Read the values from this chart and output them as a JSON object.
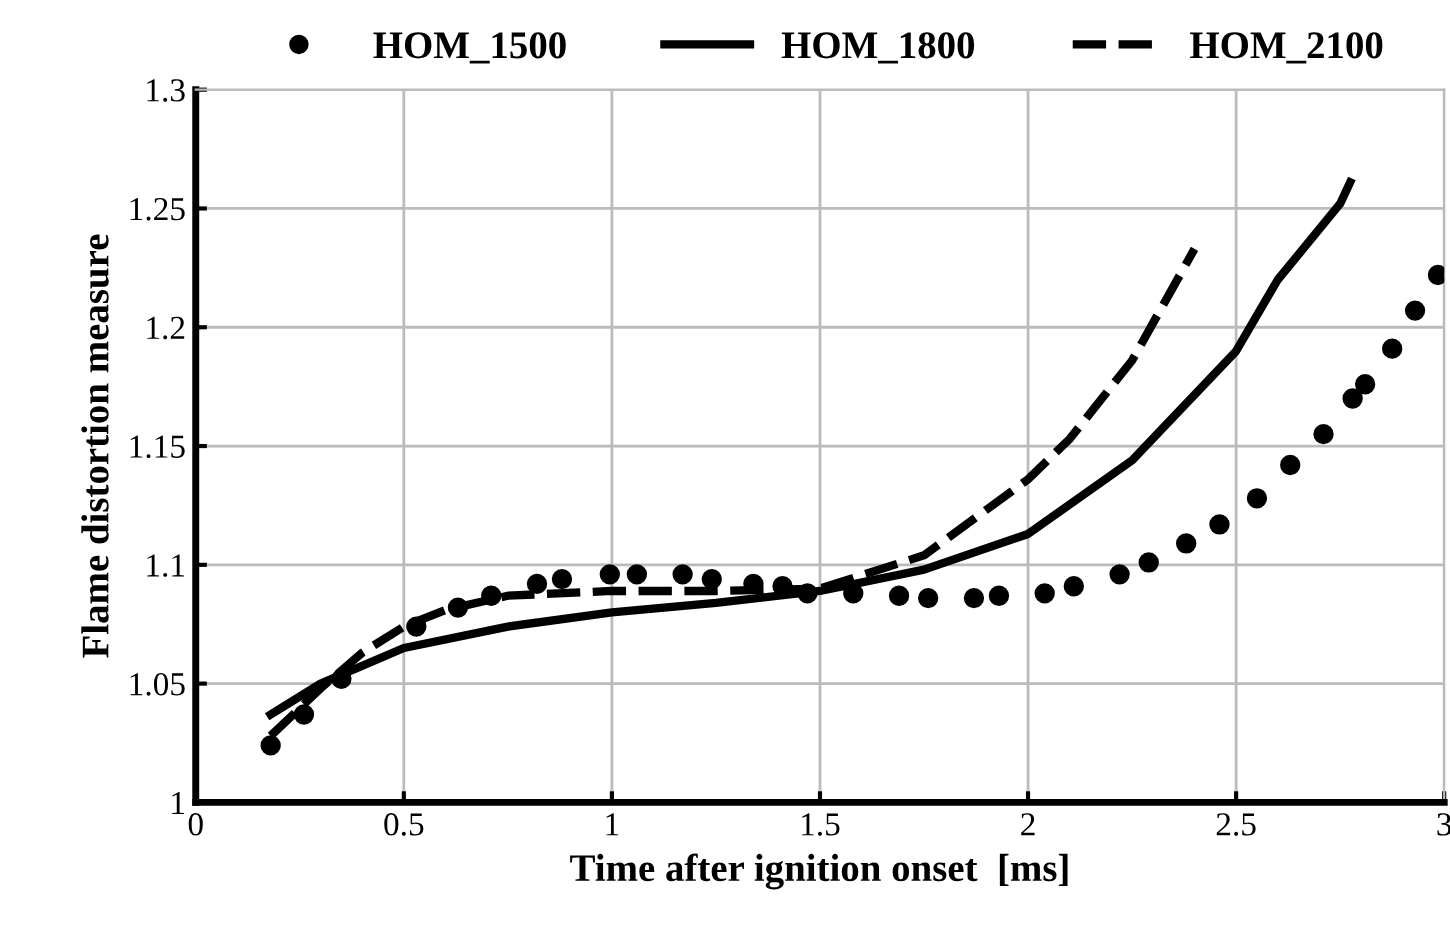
{
  "chart_data": {
    "type": "line",
    "xlabel": "Time after ignition onset  [ms]",
    "ylabel": "Flame distortion measure",
    "xlim": [
      0,
      3
    ],
    "xticks": [
      0,
      0.5,
      1,
      1.5,
      2,
      2.5,
      3
    ],
    "ylim": [
      1,
      1.3
    ],
    "yticks": [
      1,
      1.05,
      1.1,
      1.15,
      1.2,
      1.25,
      1.3
    ],
    "grid": true,
    "legend": "top",
    "series": [
      {
        "name": "HOM_1500",
        "type": "scatter",
        "marker": "circle",
        "color": "#000000",
        "x": [
          0.18,
          0.26,
          0.35,
          0.53,
          0.63,
          0.71,
          0.82,
          0.88,
          0.995,
          1.06,
          1.17,
          1.24,
          1.34,
          1.41,
          1.47,
          1.58,
          1.69,
          1.76,
          1.87,
          1.93,
          2.04,
          2.11,
          2.22,
          2.29,
          2.38,
          2.46,
          2.55,
          2.63,
          2.71,
          2.78,
          2.81,
          2.875,
          2.93,
          2.985
        ],
        "values": [
          1.024,
          1.037,
          1.052,
          1.074,
          1.082,
          1.087,
          1.092,
          1.094,
          1.096,
          1.096,
          1.096,
          1.094,
          1.092,
          1.091,
          1.088,
          1.088,
          1.087,
          1.086,
          1.086,
          1.087,
          1.088,
          1.091,
          1.096,
          1.101,
          1.109,
          1.117,
          1.128,
          1.142,
          1.155,
          1.17,
          1.176,
          1.191,
          1.207,
          1.222
        ]
      },
      {
        "name": "HOM_1800",
        "line_style": "solid",
        "color": "#000000",
        "x": [
          0.18,
          0.3,
          0.5,
          0.75,
          1,
          1.25,
          1.5,
          1.75,
          2,
          2.25,
          2.5,
          2.6,
          2.75,
          2.774
        ],
        "values": [
          1.037,
          1.05,
          1.065,
          1.074,
          1.08,
          1.084,
          1.089,
          1.098,
          1.113,
          1.144,
          1.19,
          1.22,
          1.252,
          1.261
        ]
      },
      {
        "name": "HOM_2100",
        "line_style": "dashed",
        "color": "#000000",
        "x": [
          0.18,
          0.3,
          0.4,
          0.5,
          0.6,
          0.75,
          1,
          1.25,
          1.5,
          1.75,
          2,
          2.1,
          2.25,
          2.4
        ],
        "values": [
          1.028,
          1.048,
          1.063,
          1.074,
          1.081,
          1.087,
          1.089,
          1.089,
          1.09,
          1.104,
          1.136,
          1.153,
          1.186,
          1.233
        ]
      }
    ]
  }
}
